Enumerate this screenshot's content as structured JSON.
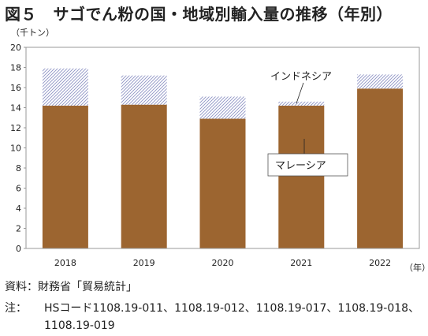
{
  "title": "図５　サゴでん粉の国・地域別輸入量の推移（年別）",
  "source": "資料：財務省「貿易統計」",
  "note_label": "注：",
  "note_text": "HSコード1108.19-011、1108.19-012、1108.19-017、1108.19-018、1108.19-019",
  "colors": {
    "malaysia": "#9c6530",
    "indonesia": "#8e93c4"
  },
  "chart_data": {
    "type": "bar",
    "stacked": true,
    "categories": [
      "2018",
      "2019",
      "2020",
      "2021",
      "2022"
    ],
    "series": [
      {
        "name": "マレーシア",
        "values": [
          14.2,
          14.3,
          12.9,
          14.2,
          15.9
        ]
      },
      {
        "name": "インドネシア",
        "values": [
          3.7,
          2.9,
          2.2,
          0.4,
          1.4
        ]
      }
    ],
    "ylim": [
      0,
      20
    ],
    "yticks": [
      "0",
      "2",
      "4",
      "6",
      "8",
      "10",
      "12",
      "14",
      "16",
      "18",
      "20"
    ],
    "y_unit": "（千トン）",
    "x_unit": "（年）",
    "grid": false
  }
}
